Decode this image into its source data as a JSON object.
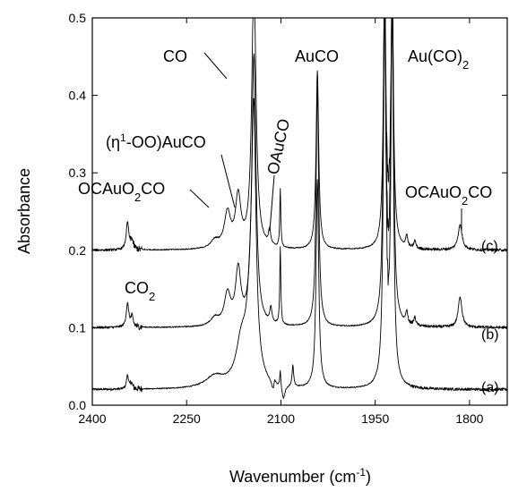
{
  "chart_data": {
    "type": "line",
    "xlabel": "Wavenumber (cm",
    "xlabel_sup": "-1",
    "xlabel_end": ")",
    "ylabel": "Absorbance",
    "xlim": [
      2400,
      1740
    ],
    "ylim": [
      0.0,
      0.5
    ],
    "x_reversed": true,
    "xticks": [
      2400,
      2250,
      2100,
      1950,
      1800
    ],
    "xtick_labels": [
      "2400",
      "2250",
      "2100",
      "1950",
      "1800"
    ],
    "yticks": [
      0.0,
      0.1,
      0.2,
      0.3,
      0.4,
      0.5
    ],
    "ytick_labels": [
      "0.0",
      "0.1",
      "0.2",
      "0.3",
      "0.4",
      "0.5"
    ],
    "grid": false,
    "legend": "none",
    "line_color": "#000000",
    "series": [
      {
        "name": "(a)",
        "baseline": 0.02,
        "peaks": [
          {
            "x": 2344,
            "h": 0.018,
            "w": 2.0
          },
          {
            "x": 2338,
            "h": 0.008,
            "w": 2.0
          },
          {
            "x": 2205,
            "h": 0.015,
            "w": 18
          },
          {
            "x": 2163,
            "h": 0.05,
            "w": 10
          },
          {
            "x": 2148,
            "h": 0.09,
            "w": 8
          },
          {
            "x": 2143,
            "h": 0.3,
            "w": 4
          },
          {
            "x": 2110,
            "h": 0.012,
            "w": 2
          },
          {
            "x": 2101,
            "h": 0.022,
            "w": 1
          },
          {
            "x": 2081,
            "h": 0.028,
            "w": 1.5
          },
          {
            "x": 2042,
            "h": 0.27,
            "w": 2.5
          },
          {
            "x": 1935,
            "h": 0.48,
            "w": 2.5
          },
          {
            "x": 1923,
            "h": 0.48,
            "w": 2.5
          }
        ],
        "dips": [
          {
            "x": 2112,
            "d": 0.015,
            "w": 3
          },
          {
            "x": 2096,
            "d": 0.018,
            "w": 3
          }
        ]
      },
      {
        "name": "(b)",
        "baseline": 0.1,
        "peaks": [
          {
            "x": 2344,
            "h": 0.03,
            "w": 2.5
          },
          {
            "x": 2337,
            "h": 0.012,
            "w": 2.5
          },
          {
            "x": 2205,
            "h": 0.01,
            "w": 8
          },
          {
            "x": 2185,
            "h": 0.04,
            "w": 6
          },
          {
            "x": 2168,
            "h": 0.07,
            "w": 5
          },
          {
            "x": 2143,
            "h": 0.35,
            "w": 4
          },
          {
            "x": 2116,
            "h": 0.02,
            "w": 2
          },
          {
            "x": 2101,
            "h": 0.1,
            "w": 1
          },
          {
            "x": 2042,
            "h": 0.31,
            "w": 2.5
          },
          {
            "x": 1935,
            "h": 0.45,
            "w": 2.5
          },
          {
            "x": 1923,
            "h": 0.45,
            "w": 2.5
          },
          {
            "x": 1900,
            "h": 0.015,
            "w": 2
          },
          {
            "x": 1887,
            "h": 0.01,
            "w": 2
          },
          {
            "x": 1815,
            "h": 0.04,
            "w": 3.5
          }
        ],
        "dips": []
      },
      {
        "name": "(c)",
        "baseline": 0.2,
        "peaks": [
          {
            "x": 2344,
            "h": 0.035,
            "w": 2.5
          },
          {
            "x": 2337,
            "h": 0.012,
            "w": 2.5
          },
          {
            "x": 2205,
            "h": 0.01,
            "w": 8
          },
          {
            "x": 2185,
            "h": 0.045,
            "w": 6
          },
          {
            "x": 2168,
            "h": 0.065,
            "w": 5
          },
          {
            "x": 2143,
            "h": 0.35,
            "w": 4
          },
          {
            "x": 2118,
            "h": 0.02,
            "w": 2
          },
          {
            "x": 2101,
            "h": 0.075,
            "w": 1
          },
          {
            "x": 2042,
            "h": 0.23,
            "w": 2.5
          },
          {
            "x": 1935,
            "h": 0.33,
            "w": 2.5
          },
          {
            "x": 1923,
            "h": 0.33,
            "w": 2.5
          },
          {
            "x": 1900,
            "h": 0.015,
            "w": 2
          },
          {
            "x": 1887,
            "h": 0.01,
            "w": 2
          },
          {
            "x": 1815,
            "h": 0.032,
            "w": 4
          }
        ],
        "dips": []
      }
    ],
    "annotations": {
      "co": "CO",
      "auco": "AuCO",
      "au_co2_main": "Au(CO)",
      "au_co2_sub": "2",
      "eta_pre": "(η",
      "eta_sup": "1",
      "eta_post": "-OO)AuCO",
      "oauco": "OAuCO",
      "ocauo2co_left_a": "OCAuO",
      "ocauo2co_left_sub": "2",
      "ocauo2co_left_b": "CO",
      "ocauo2co_right_a": "OCAuO",
      "ocauo2co_right_sub": "2",
      "ocauo2co_right_b": "CO",
      "co2_main": "CO",
      "co2_sub": "2",
      "label_c": "(c)",
      "label_b": "(b)",
      "label_a": "(a)"
    }
  }
}
